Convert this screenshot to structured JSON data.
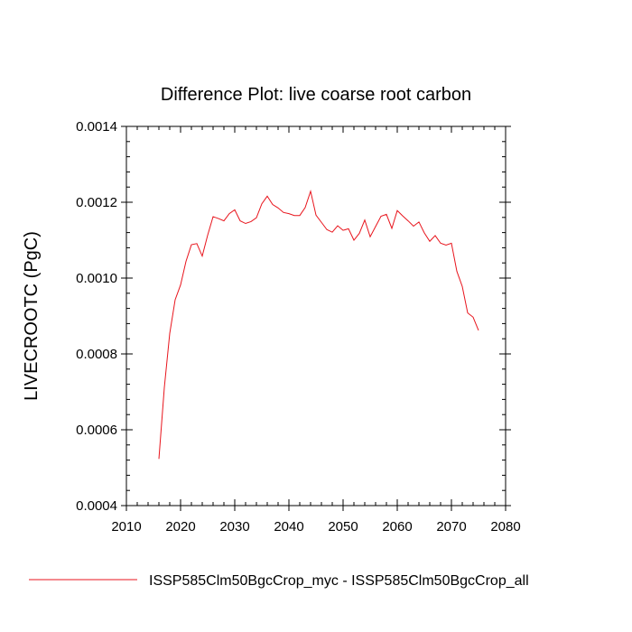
{
  "chart_data": {
    "type": "line",
    "title": "Difference Plot: live coarse root carbon",
    "xlabel": "",
    "ylabel": "LIVECROOTC  (PgC)",
    "xlim": [
      2010,
      2080
    ],
    "ylim": [
      0.0004,
      0.0014
    ],
    "xticks": [
      2010,
      2020,
      2030,
      2040,
      2050,
      2060,
      2070,
      2080
    ],
    "yticks": [
      0.0004,
      0.0006,
      0.0008,
      0.001,
      0.0012,
      0.0014
    ],
    "xtick_labels": [
      "2010",
      "2020",
      "2030",
      "2040",
      "2050",
      "2060",
      "2070",
      "2080"
    ],
    "ytick_labels": [
      "0.0004",
      "0.0006",
      "0.0008",
      "0.0010",
      "0.0012",
      "0.0014"
    ],
    "grid": false,
    "legend_position": "bottom",
    "series": [
      {
        "name": "ISSP585Clm50BgcCrop_myc - ISSP585Clm50BgcCrop_all",
        "color": "#e8141c",
        "x": [
          2016,
          2017,
          2018,
          2019,
          2020,
          2021,
          2022,
          2023,
          2024,
          2025,
          2026,
          2027,
          2028,
          2029,
          2030,
          2031,
          2032,
          2033,
          2034,
          2035,
          2036,
          2037,
          2038,
          2039,
          2040,
          2041,
          2042,
          2043,
          2044,
          2045,
          2046,
          2047,
          2048,
          2049,
          2050,
          2051,
          2052,
          2053,
          2054,
          2055,
          2056,
          2057,
          2058,
          2059,
          2060,
          2061,
          2062,
          2063,
          2064,
          2065,
          2066,
          2067,
          2068,
          2069,
          2070,
          2071,
          2072,
          2073,
          2074,
          2075
        ],
        "y": [
          0.000523,
          0.000711,
          0.000854,
          0.000943,
          0.000982,
          0.001044,
          0.001088,
          0.001091,
          0.001058,
          0.001113,
          0.001162,
          0.001157,
          0.001151,
          0.00117,
          0.00118,
          0.001151,
          0.001144,
          0.001149,
          0.001159,
          0.001196,
          0.001216,
          0.001194,
          0.001185,
          0.001173,
          0.00117,
          0.001165,
          0.001165,
          0.001186,
          0.001229,
          0.001166,
          0.001147,
          0.001128,
          0.001121,
          0.001138,
          0.001126,
          0.00113,
          0.0011,
          0.001118,
          0.001153,
          0.001109,
          0.001136,
          0.001163,
          0.001168,
          0.001131,
          0.001178,
          0.001164,
          0.001151,
          0.001137,
          0.001148,
          0.001119,
          0.001097,
          0.001112,
          0.001092,
          0.001087,
          0.001092,
          0.001018,
          0.000978,
          0.000908,
          0.000897,
          0.000862
        ]
      }
    ]
  }
}
